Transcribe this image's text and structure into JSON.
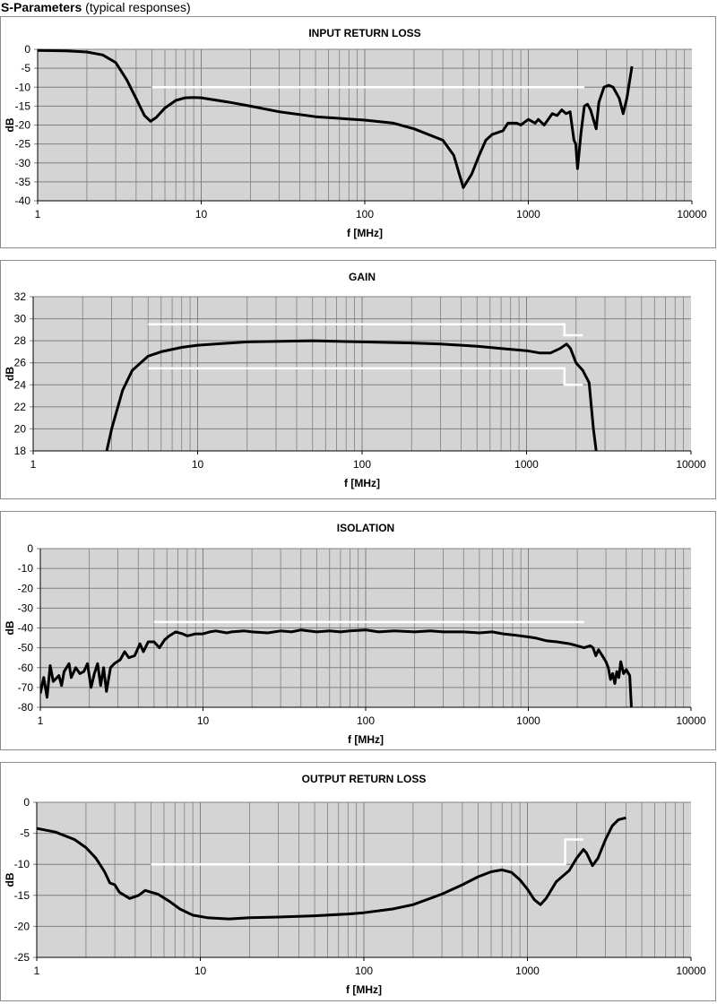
{
  "page": {
    "title_bold": "S-Parameters",
    "title_rest": " (typical responses)"
  },
  "colors": {
    "plot_background": "#d4d4d4",
    "grid": "#7f7f7f",
    "curve": "#000000",
    "limit_line": "#ffffff",
    "frame": "#8c8c8c"
  },
  "chart_data": [
    {
      "type": "line",
      "title": "INPUT RETURN LOSS",
      "xlabel": "f [MHz]",
      "ylabel": "dB",
      "xscale": "log",
      "xlim": [
        1,
        10000
      ],
      "ylim": [
        -40,
        0
      ],
      "xticks": [
        "1",
        "10",
        "100",
        "1000",
        "10000"
      ],
      "yticks": [
        "0",
        "-5",
        "-10",
        "-15",
        "-20",
        "-25",
        "-30",
        "-35",
        "-40"
      ],
      "grid": true,
      "series": [
        {
          "x": [
            1,
            1.5,
            2,
            2.5,
            3,
            3.5,
            4,
            4.5,
            4.9,
            5.3,
            6,
            7,
            8,
            9,
            10,
            15,
            20,
            30,
            50,
            100,
            150,
            200,
            300,
            350,
            400,
            450,
            500,
            550,
            600,
            700,
            750,
            850,
            900,
            1000,
            1100,
            1150,
            1250,
            1400,
            1500,
            1600,
            1700,
            1800,
            1900,
            1950,
            2000,
            2100,
            2200,
            2300,
            2400,
            2600,
            2700,
            2900,
            3100,
            3300,
            3600,
            3800,
            4000,
            4300
          ],
          "y": [
            -0.3,
            -0.4,
            -0.7,
            -1.5,
            -3.5,
            -8,
            -13,
            -17.5,
            -19,
            -18,
            -15.5,
            -13.5,
            -12.8,
            -12.7,
            -12.8,
            -14,
            -15,
            -16.5,
            -17.8,
            -18.7,
            -19.5,
            -21,
            -24,
            -28,
            -36.5,
            -33,
            -28,
            -24,
            -22.5,
            -21.5,
            -19.5,
            -19.5,
            -20,
            -18.5,
            -19.5,
            -18.5,
            -20,
            -17,
            -17.5,
            -16,
            -17,
            -16.5,
            -24,
            -25,
            -31.5,
            -22,
            -15,
            -14.5,
            -16,
            -21,
            -14,
            -10,
            -9.5,
            -10,
            -13,
            -17,
            -13,
            -4.5
          ]
        }
      ],
      "limit_lines": [
        {
          "x": [
            5,
            2200
          ],
          "y": [
            -10,
            -10
          ]
        }
      ]
    },
    {
      "type": "line",
      "title": "GAIN",
      "xlabel": "f [MHz]",
      "ylabel": "dB",
      "xscale": "log",
      "xlim": [
        1,
        10000
      ],
      "ylim": [
        18,
        32
      ],
      "xticks": [
        "1",
        "10",
        "100",
        "1000",
        "10000"
      ],
      "yticks": [
        "32",
        "30",
        "28",
        "26",
        "24",
        "22",
        "20",
        "18"
      ],
      "grid": true,
      "series": [
        {
          "x": [
            2.8,
            3,
            3.5,
            4,
            5,
            6,
            8,
            10,
            20,
            50,
            100,
            200,
            300,
            500,
            700,
            1000,
            1200,
            1400,
            1600,
            1750,
            1850,
            2000,
            2200,
            2400,
            2550,
            2650
          ],
          "y": [
            18,
            20,
            23.5,
            25.3,
            26.6,
            27,
            27.4,
            27.6,
            27.9,
            28,
            27.9,
            27.8,
            27.7,
            27.5,
            27.3,
            27.1,
            26.9,
            26.9,
            27.3,
            27.7,
            27.3,
            26,
            25.3,
            24.2,
            20,
            18
          ]
        }
      ],
      "limit_lines": [
        {
          "x": [
            5,
            1700,
            1700,
            2200
          ],
          "y": [
            29.5,
            29.5,
            28.5,
            28.5
          ]
        },
        {
          "x": [
            5,
            1700,
            1700,
            2200
          ],
          "y": [
            25.5,
            25.5,
            24,
            24
          ]
        }
      ]
    },
    {
      "type": "line",
      "title": "ISOLATION",
      "xlabel": "f [MHz]",
      "ylabel": "dB",
      "xscale": "log",
      "xlim": [
        1,
        10000
      ],
      "ylim": [
        -80,
        0
      ],
      "xticks": [
        "1",
        "10",
        "100",
        "1000",
        "10000"
      ],
      "yticks": [
        "0",
        "-10",
        "-20",
        "-30",
        "-40",
        "-50",
        "-60",
        "-70",
        "-80"
      ],
      "grid": true,
      "series": [
        {
          "x": [
            1,
            1.05,
            1.1,
            1.15,
            1.2,
            1.3,
            1.35,
            1.4,
            1.5,
            1.55,
            1.65,
            1.75,
            1.85,
            1.95,
            2.05,
            2.15,
            2.25,
            2.35,
            2.45,
            2.55,
            2.7,
            2.85,
            3.1,
            3.3,
            3.5,
            3.8,
            4.1,
            4.3,
            4.6,
            5,
            5.4,
            5.8,
            6.2,
            6.8,
            7.5,
            8,
            9,
            10,
            11,
            12,
            14,
            15,
            18,
            20,
            25,
            30,
            35,
            40,
            50,
            60,
            70,
            80,
            100,
            120,
            150,
            200,
            250,
            300,
            400,
            500,
            600,
            700,
            800,
            1000,
            1100,
            1300,
            1500,
            1800,
            2000,
            2200,
            2400,
            2500,
            2600,
            2700,
            2900,
            3000,
            3100,
            3200,
            3300,
            3400,
            3500,
            3600,
            3700,
            3850,
            4000,
            4200,
            4300
          ],
          "y": [
            -73,
            -65,
            -75,
            -59,
            -67,
            -64,
            -69,
            -62,
            -58,
            -65,
            -60,
            -63,
            -62,
            -58,
            -70,
            -63,
            -58,
            -69,
            -60,
            -72,
            -60,
            -58,
            -56,
            -52,
            -55,
            -54,
            -48,
            -52,
            -47,
            -47,
            -50,
            -46,
            -44,
            -42,
            -43,
            -44,
            -43,
            -43,
            -42,
            -41.5,
            -42.5,
            -42,
            -41.5,
            -42,
            -42.5,
            -41.5,
            -42,
            -41,
            -42,
            -41.5,
            -42,
            -41.5,
            -41,
            -42,
            -41.5,
            -42,
            -41.5,
            -42,
            -42,
            -42.5,
            -42,
            -43,
            -43.5,
            -44.5,
            -45,
            -46.5,
            -47,
            -48,
            -49,
            -50,
            -49,
            -50,
            -54,
            -51,
            -55,
            -57,
            -60,
            -66,
            -63,
            -68,
            -62,
            -65,
            -57,
            -63,
            -61,
            -64,
            -80
          ]
        }
      ],
      "limit_lines": [
        {
          "x": [
            5,
            2200
          ],
          "y": [
            -37,
            -37
          ]
        }
      ]
    },
    {
      "type": "line",
      "title": "OUTPUT RETURN LOSS",
      "xlabel": "f [MHz]",
      "ylabel": "dB",
      "xscale": "log",
      "xlim": [
        1,
        10000
      ],
      "ylim": [
        -25,
        0
      ],
      "xticks": [
        "1",
        "10",
        "100",
        "1000",
        "10000"
      ],
      "yticks": [
        "0",
        "-5",
        "-10",
        "-15",
        "-20",
        "-25"
      ],
      "grid": true,
      "series": [
        {
          "x": [
            1,
            1.3,
            1.7,
            2,
            2.3,
            2.6,
            2.8,
            3,
            3.2,
            3.7,
            4.2,
            4.6,
            5,
            5.5,
            6.5,
            7.5,
            9,
            11,
            15,
            20,
            30,
            50,
            80,
            100,
            150,
            200,
            300,
            400,
            500,
            600,
            700,
            800,
            900,
            1000,
            1100,
            1200,
            1300,
            1500,
            1800,
            2000,
            2200,
            2300,
            2500,
            2700,
            3000,
            3300,
            3600,
            4000
          ],
          "y": [
            -4.2,
            -4.8,
            -6,
            -7.3,
            -9,
            -11.2,
            -13,
            -13.3,
            -14.5,
            -15.5,
            -15,
            -14.2,
            -14.5,
            -14.8,
            -16,
            -17.2,
            -18.2,
            -18.6,
            -18.8,
            -18.6,
            -18.5,
            -18.3,
            -18,
            -17.8,
            -17.2,
            -16.5,
            -14.8,
            -13.3,
            -12,
            -11.2,
            -10.9,
            -11.3,
            -12.5,
            -14,
            -15.7,
            -16.5,
            -15.5,
            -12.8,
            -11,
            -9,
            -7.6,
            -8.2,
            -10.2,
            -9,
            -6,
            -3.8,
            -2.8,
            -2.5
          ]
        }
      ],
      "limit_lines": [
        {
          "x": [
            5,
            1700,
            1700,
            2200
          ],
          "y": [
            -10,
            -10,
            -6,
            -6
          ]
        }
      ]
    }
  ]
}
